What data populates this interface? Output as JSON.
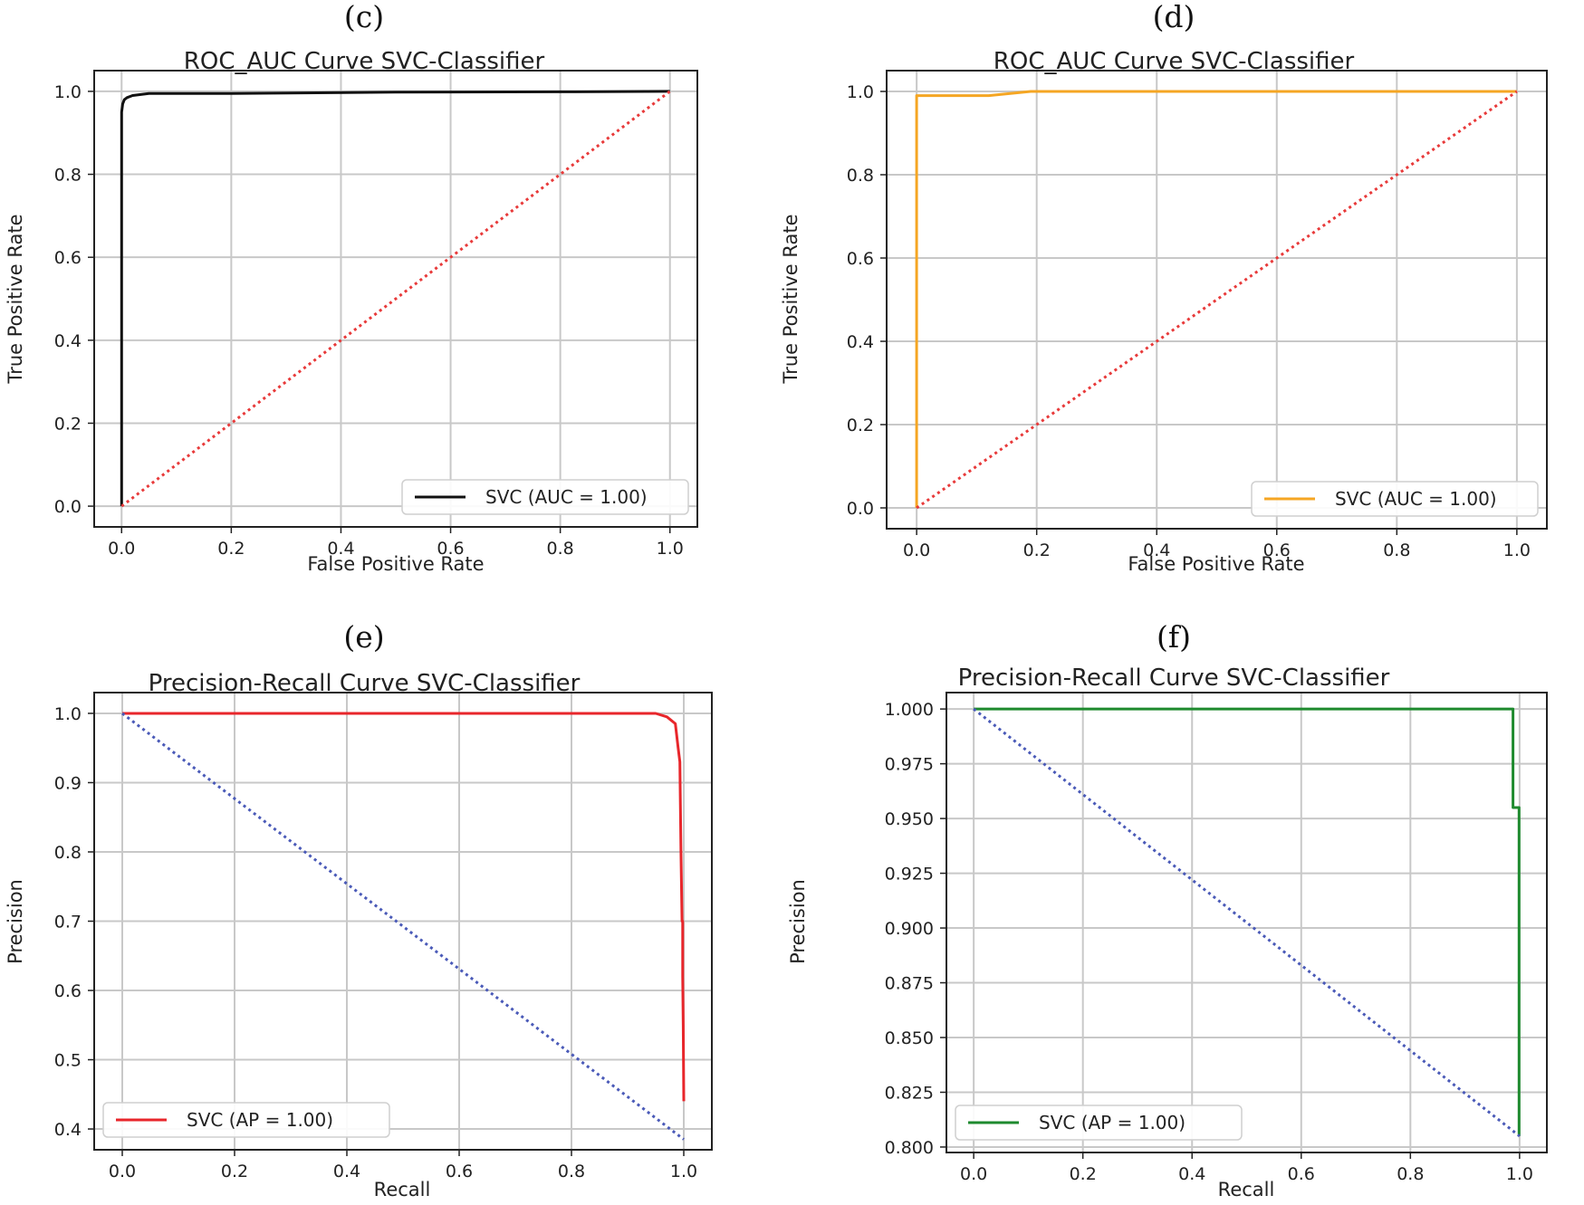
{
  "chart_data": [
    {
      "type": "line",
      "panel_label": "(c)",
      "title": "ROC_AUC Curve SVC-Classifier",
      "xlabel": "False Positive Rate",
      "ylabel": "True Positive Rate",
      "xlim": [
        -0.05,
        1.05
      ],
      "ylim": [
        -0.05,
        1.05
      ],
      "xticks": [
        "0.0",
        "0.2",
        "0.4",
        "0.6",
        "0.8",
        "1.0"
      ],
      "xtick_values": [
        0,
        0.2,
        0.4,
        0.6,
        0.8,
        1.0
      ],
      "yticks": [
        "0.0",
        "0.2",
        "0.4",
        "0.6",
        "0.8",
        "1.0"
      ],
      "ytick_values": [
        0,
        0.2,
        0.4,
        0.6,
        0.8,
        1.0
      ],
      "grid": true,
      "legend": "lower-right",
      "series": [
        {
          "name": "SVC (AUC = 1.00)",
          "color": "#111111",
          "style": "solid",
          "in_legend": true,
          "x": [
            0,
            0,
            0.002,
            0.005,
            0.01,
            0.02,
            0.05,
            0.2,
            0.5,
            0.8,
            1.0
          ],
          "y": [
            0,
            0.95,
            0.97,
            0.98,
            0.985,
            0.99,
            0.995,
            0.995,
            0.998,
            0.999,
            1.0
          ]
        },
        {
          "name": "chance",
          "color": "#e83a3a",
          "style": "dotted",
          "in_legend": false,
          "x": [
            0,
            1
          ],
          "y": [
            0,
            1
          ]
        }
      ]
    },
    {
      "type": "line",
      "panel_label": "(d)",
      "title": "ROC_AUC Curve SVC-Classifier",
      "xlabel": "False Positive Rate",
      "ylabel": "True Positive Rate",
      "xlim": [
        -0.05,
        1.05
      ],
      "ylim": [
        -0.05,
        1.05
      ],
      "xticks": [
        "0.0",
        "0.2",
        "0.4",
        "0.6",
        "0.8",
        "1.0"
      ],
      "xtick_values": [
        0,
        0.2,
        0.4,
        0.6,
        0.8,
        1.0
      ],
      "yticks": [
        "0.0",
        "0.2",
        "0.4",
        "0.6",
        "0.8",
        "1.0"
      ],
      "ytick_values": [
        0,
        0.2,
        0.4,
        0.6,
        0.8,
        1.0
      ],
      "grid": true,
      "legend": "lower-right",
      "series": [
        {
          "name": "SVC (AUC = 1.00)",
          "color": "#f5a623",
          "style": "solid",
          "in_legend": true,
          "x": [
            0,
            0,
            0.12,
            0.19,
            0.46,
            0.47,
            1.0
          ],
          "y": [
            0,
            0.99,
            0.99,
            1.0,
            1.0,
            1.0,
            1.0
          ]
        },
        {
          "name": "chance",
          "color": "#e83a3a",
          "style": "dotted",
          "in_legend": false,
          "x": [
            0,
            1
          ],
          "y": [
            0,
            1
          ]
        }
      ]
    },
    {
      "type": "line",
      "panel_label": "(e)",
      "title": "Precision-Recall Curve SVC-Classifier",
      "xlabel": "Recall",
      "ylabel": "Precision",
      "xlim": [
        -0.05,
        1.05
      ],
      "ylim": [
        0.37,
        1.03
      ],
      "xticks": [
        "0.0",
        "0.2",
        "0.4",
        "0.6",
        "0.8",
        "1.0"
      ],
      "xtick_values": [
        0,
        0.2,
        0.4,
        0.6,
        0.8,
        1.0
      ],
      "yticks": [
        "0.4",
        "0.5",
        "0.6",
        "0.7",
        "0.8",
        "0.9",
        "1.0"
      ],
      "ytick_values": [
        0.4,
        0.5,
        0.6,
        0.7,
        0.8,
        0.9,
        1.0
      ],
      "grid": true,
      "legend": "lower-left",
      "series": [
        {
          "name": "SVC (AP = 1.00)",
          "color": "#e8262b",
          "style": "solid",
          "in_legend": true,
          "x": [
            0,
            0.95,
            0.97,
            0.985,
            0.99,
            0.993,
            0.995,
            0.997,
            0.998,
            0.998,
            0.999,
            1.0
          ],
          "y": [
            1.0,
            1.0,
            0.995,
            0.985,
            0.95,
            0.93,
            0.8,
            0.7,
            0.7,
            0.62,
            0.55,
            0.44
          ]
        },
        {
          "name": "baseline",
          "color": "#4a5ab8",
          "style": "dotted",
          "in_legend": false,
          "x": [
            0,
            1
          ],
          "y": [
            1.0,
            0.385
          ]
        }
      ]
    },
    {
      "type": "line",
      "panel_label": "(f)",
      "title": "Precision-Recall Curve SVC-Classifier",
      "xlabel": "Recall",
      "ylabel": "Precision",
      "xlim": [
        -0.05,
        1.05
      ],
      "ylim": [
        0.7975,
        1.0075
      ],
      "xticks": [
        "0.0",
        "0.2",
        "0.4",
        "0.6",
        "0.8",
        "1.0"
      ],
      "xtick_values": [
        0,
        0.2,
        0.4,
        0.6,
        0.8,
        1.0
      ],
      "yticks": [
        "0.800",
        "0.825",
        "0.850",
        "0.875",
        "0.900",
        "0.925",
        "0.950",
        "0.975",
        "1.000"
      ],
      "ytick_values": [
        0.8,
        0.825,
        0.85,
        0.875,
        0.9,
        0.925,
        0.95,
        0.975,
        1.0
      ],
      "grid": true,
      "legend": "lower-left",
      "series": [
        {
          "name": "SVC (AP = 1.00)",
          "color": "#1e8a2e",
          "style": "solid",
          "in_legend": true,
          "x": [
            0,
            0.988,
            0.988,
            0.999,
            0.999
          ],
          "y": [
            1.0,
            1.0,
            0.955,
            0.955,
            0.805
          ]
        },
        {
          "name": "baseline",
          "color": "#4a5ab8",
          "style": "dotted",
          "in_legend": false,
          "x": [
            0,
            1
          ],
          "y": [
            1.0,
            0.805
          ]
        }
      ]
    }
  ]
}
